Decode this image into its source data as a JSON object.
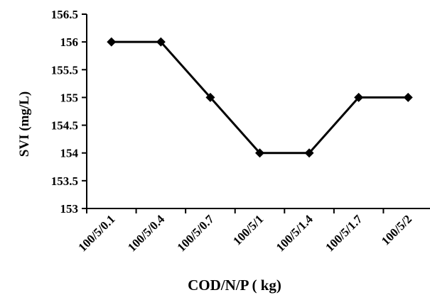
{
  "chart_data": {
    "type": "line",
    "title": "",
    "xlabel": "COD/N/P ( kg)",
    "ylabel": "SVI (mg/L)",
    "categories": [
      "100/5/0.1",
      "100/5/0.4",
      "100/5/0.7",
      "100/5/1",
      "100/5/1.4",
      "100/5/1.7",
      "100/5/2"
    ],
    "series": [
      {
        "values": [
          156,
          156,
          155,
          154,
          154,
          155,
          155
        ]
      }
    ],
    "ylim": [
      153,
      156.5
    ],
    "yticks": [
      "153",
      "153.5",
      "154",
      "154.5",
      "155",
      "155.5",
      "156",
      "156.5"
    ],
    "marker": "diamond",
    "line_color": "#000000",
    "grid": false,
    "legend": "none"
  }
}
